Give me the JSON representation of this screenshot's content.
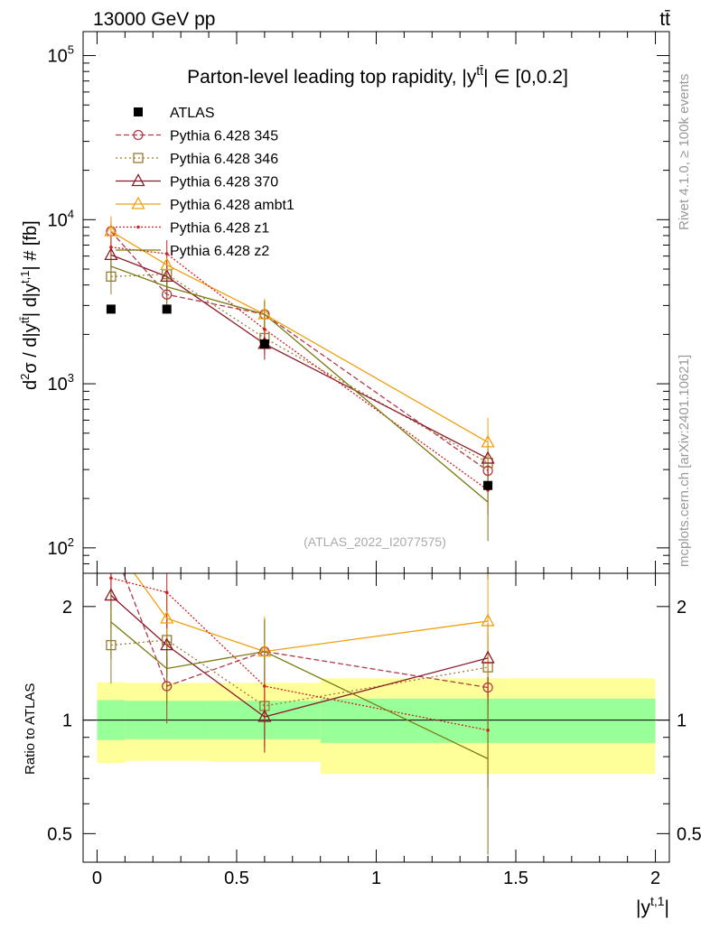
{
  "header": {
    "energy_label": "13000 GeV pp",
    "process_label": "tt̄"
  },
  "side_text": {
    "rivet": "Rivet 4.1.0, ≥ 100k events",
    "mcplots": "mcplots.cern.ch [arXiv:2401.10621]"
  },
  "chart_data": [
    {
      "type": "line",
      "panel": "main",
      "title": "Parton-level leading top rapidity, |y^{tt̄}| ∈ [0,0.2]",
      "title_parts": {
        "lead": "Parton-level leading top rapidity, |y",
        "sup": "tt̄",
        "tail": "| ∈ [0,0.2]"
      },
      "watermark": "(ATLAS_2022_I2077575)",
      "ylabel": "d²σ / d|y^{tt̄}| d|y^{t,1}| # [fb]",
      "ylabel_parts": {
        "a": "d",
        "a_sup": "2",
        "b": "σ / d|y",
        "b_sup": "tt̄",
        "c": "| d|y",
        "c_sup": "t,1",
        "d": "| # [fb]"
      },
      "yscale": "log",
      "ylim": [
        70,
        140000
      ],
      "xlim": [
        -0.05,
        2.05
      ],
      "y_ticks": [
        {
          "value": 100,
          "base": "10",
          "exp": "2"
        },
        {
          "value": 1000,
          "base": "10",
          "exp": "3"
        },
        {
          "value": 10000,
          "base": "10",
          "exp": "4"
        },
        {
          "value": 100000,
          "base": "10",
          "exp": "5"
        }
      ],
      "data": {
        "name": "ATLAS",
        "x": [
          0.05,
          0.25,
          0.6,
          1.4
        ],
        "y": [
          2850,
          2850,
          1750,
          240
        ]
      },
      "series": [
        {
          "name": "Pythia 6.428 345",
          "color": "#b03a48",
          "dash": "6,3",
          "marker": "circle",
          "x": [
            0.05,
            0.25,
            0.6,
            1.4
          ],
          "y": [
            8500,
            3500,
            2650,
            295
          ],
          "err": [
            [
              7000,
              10000
            ],
            [
              2800,
              4200
            ],
            [
              2100,
              3200
            ],
            [
              230,
              360
            ]
          ]
        },
        {
          "name": "Pythia 6.428 346",
          "color": "#9a7a30",
          "dash": "2,3",
          "marker": "square",
          "x": [
            0.05,
            0.25,
            0.6,
            1.4
          ],
          "y": [
            4500,
            4650,
            1900,
            330
          ],
          "err": [
            [
              3500,
              5500
            ],
            [
              3800,
              5500
            ],
            [
              1500,
              2300
            ],
            [
              250,
              410
            ]
          ]
        },
        {
          "name": "Pythia 6.428 370",
          "color": "#8b1a2a",
          "dash": "",
          "marker": "triangle",
          "x": [
            0.05,
            0.25,
            0.6,
            1.4
          ],
          "y": [
            6100,
            4500,
            1750,
            350
          ],
          "err": [
            [
              5000,
              7200
            ],
            [
              3700,
              5300
            ],
            [
              1400,
              2100
            ],
            [
              270,
              430
            ]
          ]
        },
        {
          "name": "Pythia 6.428 ambt1",
          "color": "#f0a010",
          "dash": "",
          "marker": "triangle",
          "x": [
            0.05,
            0.25,
            0.6,
            1.4
          ],
          "y": [
            8500,
            5300,
            2650,
            440
          ],
          "err": [
            [
              7000,
              10500
            ],
            [
              4400,
              6300
            ],
            [
              2100,
              3300
            ],
            [
              320,
              620
            ]
          ]
        },
        {
          "name": "Pythia 6.428 z1",
          "color": "#d02020",
          "dash": "2,2",
          "marker": "dot",
          "x": [
            0.05,
            0.25,
            0.6,
            1.4
          ],
          "y": [
            6800,
            6200,
            2150,
            225
          ],
          "err": [
            [
              5600,
              8000
            ],
            [
              5000,
              7500
            ],
            [
              1700,
              2600
            ],
            [
              160,
              300
            ]
          ]
        },
        {
          "name": "Pythia 6.428 z2",
          "color": "#7a7a10",
          "dash": "",
          "marker": "none",
          "x": [
            0.05,
            0.25,
            0.6,
            1.4
          ],
          "y": [
            5200,
            3900,
            2650,
            190
          ],
          "err": [
            [
              4200,
              6300
            ],
            [
              3100,
              4700
            ],
            [
              2100,
              3200
            ],
            [
              110,
              280
            ]
          ]
        }
      ]
    },
    {
      "type": "line",
      "panel": "ratio",
      "ylabel": "Ratio to ATLAS",
      "xlabel": "|y^{t,1}|",
      "xlabel_parts": {
        "a": "|y",
        "sup": "t,1",
        "b": "|"
      },
      "yscale": "log",
      "ylim": [
        0.42,
        2.45
      ],
      "xlim": [
        -0.05,
        2.05
      ],
      "x_ticks": [
        "0",
        "0.5",
        "1",
        "1.5",
        "2"
      ],
      "x_tick_values": [
        0,
        0.5,
        1,
        1.5,
        2
      ],
      "y_ticks": [
        "0.5",
        "1",
        "2"
      ],
      "y_tick_values": [
        0.5,
        1,
        2
      ],
      "bands": [
        {
          "xlo": 0.0,
          "xhi": 0.1,
          "inner": [
            0.885,
            1.13
          ],
          "outer": [
            0.77,
            1.26
          ]
        },
        {
          "xlo": 0.1,
          "xhi": 0.4,
          "inner": [
            0.89,
            1.125
          ],
          "outer": [
            0.78,
            1.255
          ]
        },
        {
          "xlo": 0.4,
          "xhi": 0.8,
          "inner": [
            0.89,
            1.125
          ],
          "outer": [
            0.775,
            1.255
          ]
        },
        {
          "xlo": 0.8,
          "xhi": 2.0,
          "inner": [
            0.87,
            1.14
          ],
          "outer": [
            0.72,
            1.29
          ]
        }
      ],
      "series": [
        {
          "name": "Pythia 6.428 345",
          "x": [
            0.05,
            0.25,
            0.6,
            1.4
          ],
          "y": [
            2.98,
            1.23,
            1.52,
            1.22
          ],
          "err": [
            [
              2.4,
              3.5
            ],
            [
              0.98,
              1.48
            ],
            [
              1.2,
              1.85
            ],
            [
              0.95,
              1.5
            ]
          ]
        },
        {
          "name": "Pythia 6.428 346",
          "x": [
            0.05,
            0.25,
            0.6,
            1.4
          ],
          "y": [
            1.58,
            1.63,
            1.09,
            1.38
          ],
          "err": [
            [
              1.25,
              1.9
            ],
            [
              1.35,
              1.95
            ],
            [
              0.85,
              1.35
            ],
            [
              1.05,
              1.7
            ]
          ]
        },
        {
          "name": "Pythia 6.428 370",
          "x": [
            0.05,
            0.25,
            0.6,
            1.4
          ],
          "y": [
            2.14,
            1.58,
            1.02,
            1.46
          ],
          "err": [
            [
              1.75,
              2.55
            ],
            [
              1.3,
              1.88
            ],
            [
              0.82,
              1.22
            ],
            [
              1.1,
              1.8
            ]
          ]
        },
        {
          "name": "Pythia 6.428 ambt1",
          "x": [
            0.05,
            0.25,
            0.6,
            1.4
          ],
          "y": [
            2.98,
            1.86,
            1.52,
            1.83
          ],
          "err": [
            [
              2.4,
              3.6
            ],
            [
              1.55,
              2.2
            ],
            [
              1.2,
              1.88
            ],
            [
              1.3,
              2.6
            ]
          ]
        },
        {
          "name": "Pythia 6.428 z1",
          "x": [
            0.05,
            0.25,
            0.6,
            1.4
          ],
          "y": [
            2.38,
            2.18,
            1.23,
            0.94
          ],
          "err": [
            [
              1.95,
              2.8
            ],
            [
              1.75,
              2.6
            ],
            [
              0.97,
              1.5
            ],
            [
              0.66,
              1.25
            ]
          ]
        },
        {
          "name": "Pythia 6.428 z2",
          "x": [
            0.05,
            0.25,
            0.6,
            1.4
          ],
          "y": [
            1.82,
            1.37,
            1.52,
            0.79
          ],
          "err": [
            [
              1.45,
              2.2
            ],
            [
              1.1,
              1.65
            ],
            [
              1.2,
              1.85
            ],
            [
              0.44,
              1.15
            ]
          ]
        }
      ]
    }
  ]
}
